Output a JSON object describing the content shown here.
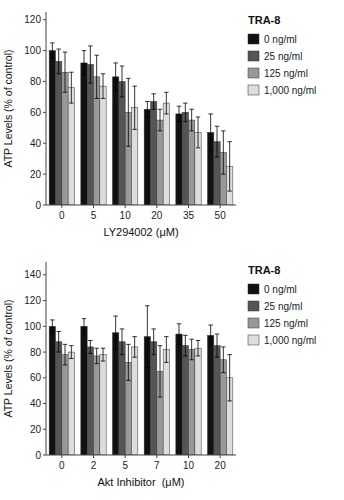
{
  "chart_data": [
    {
      "type": "bar",
      "x_label": "LY294002 (μM)",
      "y_label": "ATP Levels (% of control)",
      "legend_title": "TRA-8",
      "legend": "right",
      "grid": false,
      "categories": [
        "0",
        "5",
        "10",
        "20",
        "35",
        "50"
      ],
      "ylim": [
        0,
        125
      ],
      "yticks": [
        0,
        20,
        40,
        60,
        80,
        100,
        120
      ],
      "series": [
        {
          "name": "0 ng/ml",
          "color": "#111111",
          "values": [
            100,
            92,
            83,
            62,
            59,
            47
          ],
          "errors": [
            5,
            8,
            9,
            5,
            5,
            12
          ]
        },
        {
          "name": "25 ng/ml",
          "color": "#555555",
          "values": [
            93,
            91,
            80,
            67,
            60,
            41
          ],
          "errors": [
            8,
            12,
            10,
            5,
            6,
            10
          ]
        },
        {
          "name": "125 ng/ml",
          "color": "#999999",
          "values": [
            86,
            83,
            60,
            55,
            55,
            34
          ],
          "errors": [
            13,
            14,
            22,
            7,
            7,
            14
          ]
        },
        {
          "name": "1,000 ng/ml",
          "color": "#dddddd",
          "values": [
            76,
            77,
            63,
            66,
            47,
            25
          ],
          "errors": [
            10,
            8,
            14,
            7,
            10,
            16
          ]
        }
      ]
    },
    {
      "type": "bar",
      "x_label": "Akt Inhibitor  (μM)",
      "y_label": "ATP Levels (% of control)",
      "legend_title": "TRA-8",
      "legend": "right",
      "grid": false,
      "categories": [
        "0",
        "2",
        "5",
        "7",
        "10",
        "20"
      ],
      "ylim": [
        0,
        150
      ],
      "yticks": [
        0,
        20,
        40,
        60,
        80,
        100,
        120,
        140
      ],
      "series": [
        {
          "name": "0 ng/ml",
          "color": "#111111",
          "values": [
            100,
            100,
            95,
            92,
            94,
            93
          ],
          "errors": [
            5,
            6,
            13,
            24,
            8,
            8
          ]
        },
        {
          "name": "25 ng/ml",
          "color": "#555555",
          "values": [
            88,
            84,
            88,
            88,
            85,
            85
          ],
          "errors": [
            8,
            5,
            10,
            10,
            8,
            9
          ]
        },
        {
          "name": "125 ng/ml",
          "color": "#999999",
          "values": [
            78,
            77,
            72,
            65,
            82,
            74
          ],
          "errors": [
            8,
            6,
            14,
            20,
            8,
            10
          ]
        },
        {
          "name": "1,000 ng/ml",
          "color": "#dddddd",
          "values": [
            80,
            78,
            84,
            82,
            83,
            60
          ],
          "errors": [
            5,
            5,
            8,
            10,
            6,
            18
          ]
        }
      ]
    }
  ]
}
